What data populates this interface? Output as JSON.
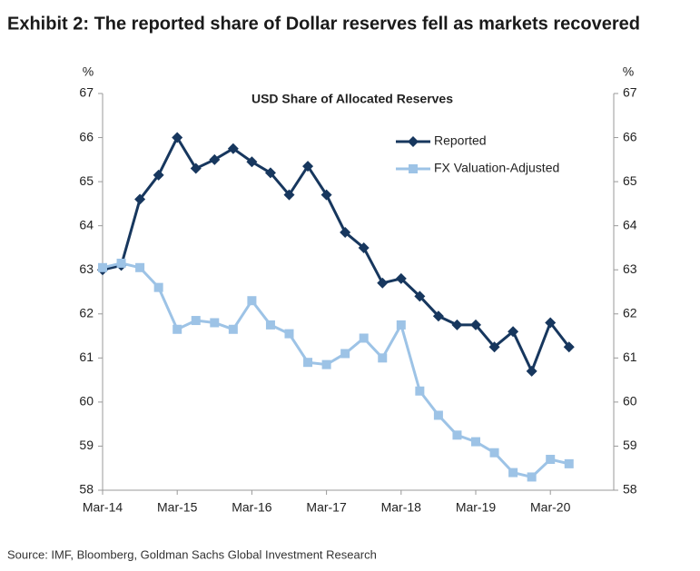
{
  "chart_data": {
    "type": "line",
    "title": "Exhibit 2: The reported share of Dollar reserves fell as markets recovered",
    "subtitle": "USD Share of Allocated Reserves",
    "ylabel": "%",
    "y2label": "%",
    "source": "Source: IMF, Bloomberg, Goldman Sachs Global Investment Research",
    "categories": [
      "Mar-14",
      null,
      null,
      null,
      "Mar-15",
      null,
      null,
      null,
      "Mar-16",
      null,
      null,
      null,
      "Mar-17",
      null,
      null,
      null,
      "Mar-18",
      null,
      null,
      null,
      "Mar-19",
      null,
      null,
      null,
      "Mar-20",
      null
    ],
    "series": [
      {
        "name": "Reported",
        "color": "#17375e",
        "marker": "diamond",
        "values": [
          63.0,
          63.1,
          64.6,
          65.15,
          66.0,
          65.3,
          65.5,
          65.75,
          65.45,
          65.2,
          64.7,
          65.35,
          64.7,
          63.85,
          63.5,
          62.7,
          62.8,
          62.4,
          61.95,
          61.75,
          61.75,
          61.25,
          61.6,
          60.7,
          61.8,
          61.25
        ]
      },
      {
        "name": "FX Valuation-Adjusted",
        "color": "#9dc3e6",
        "marker": "square",
        "values": [
          63.05,
          63.15,
          63.05,
          62.6,
          61.65,
          61.85,
          61.8,
          61.65,
          62.3,
          61.75,
          61.55,
          60.9,
          60.85,
          61.1,
          61.45,
          61.0,
          61.75,
          60.25,
          59.7,
          59.25,
          59.1,
          58.85,
          58.4,
          58.3,
          58.7,
          58.6
        ]
      }
    ],
    "ylim": [
      58,
      67
    ],
    "yticks": [
      58,
      59,
      60,
      61,
      62,
      63,
      64,
      65,
      66,
      67
    ],
    "y2lim": [
      58,
      67
    ],
    "y2ticks": [
      58,
      59,
      60,
      61,
      62,
      63,
      64,
      65,
      66,
      67
    ],
    "grid": false,
    "legend": "upper right"
  }
}
